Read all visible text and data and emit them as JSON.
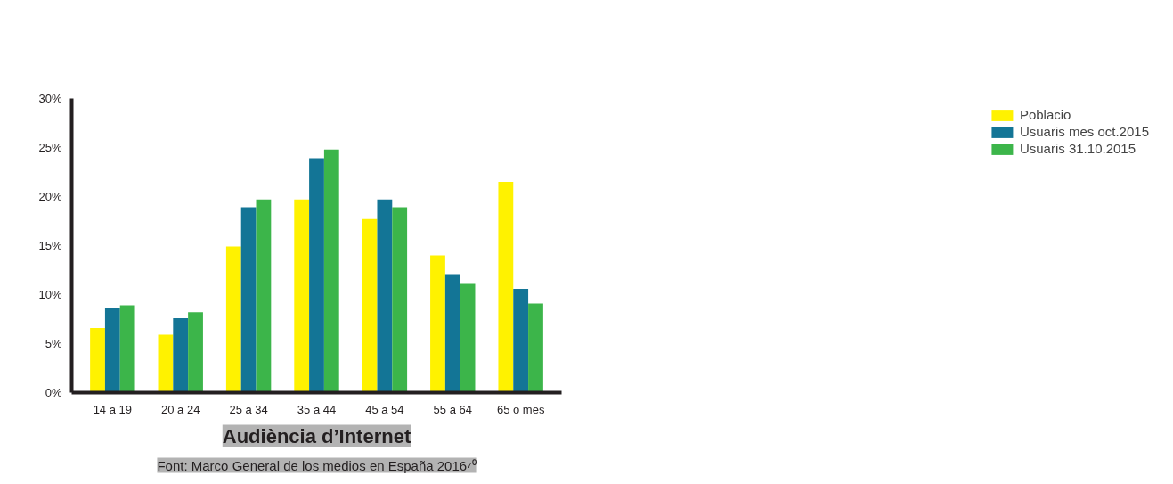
{
  "chart_data": {
    "type": "bar",
    "title": "Audiència d’Internet",
    "annotations": [
      "Font: Marco General de los medios en España 2016⁷⁰"
    ],
    "categories": [
      "14 a 19",
      "20 a 24",
      "25 a 34",
      "35 a 44",
      "45 a 54",
      "55 a 64",
      "65 o mes"
    ],
    "series": [
      {
        "name": "Poblacio",
        "color": "#fff200",
        "values": [
          6.6,
          5.9,
          14.9,
          19.7,
          17.7,
          14.0,
          21.5
        ]
      },
      {
        "name": "Usuaris mes oct.2015",
        "color": "#137596",
        "values": [
          8.6,
          7.6,
          18.9,
          23.9,
          19.7,
          12.1,
          10.6
        ]
      },
      {
        "name": "Usuaris 31.10.2015",
        "color": "#3cb54a",
        "values": [
          8.9,
          8.2,
          19.7,
          24.8,
          18.9,
          11.1,
          9.1
        ]
      }
    ],
    "ylim": [
      0,
      30
    ],
    "yticks": [
      {
        "value": 0,
        "label": "0%"
      },
      {
        "value": 5,
        "label": "5%"
      },
      {
        "value": 10,
        "label": "10%"
      },
      {
        "value": 15,
        "label": "15%"
      },
      {
        "value": 20,
        "label": "20%"
      },
      {
        "value": 25,
        "label": "25%"
      },
      {
        "value": 30,
        "label": "30%"
      }
    ],
    "legend": "right",
    "grid": false
  }
}
